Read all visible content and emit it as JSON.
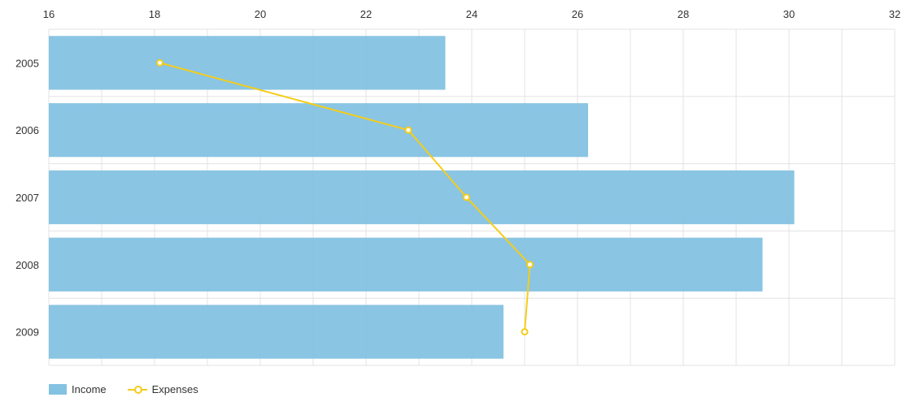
{
  "chart_data": {
    "type": "bar",
    "orientation": "horizontal",
    "categories": [
      "2005",
      "2006",
      "2007",
      "2008",
      "2009"
    ],
    "series": [
      {
        "name": "Income",
        "type": "bar",
        "values": [
          23.5,
          26.2,
          30.1,
          29.5,
          24.6
        ],
        "color": "#84c2e1"
      },
      {
        "name": "Expenses",
        "type": "line",
        "values": [
          18.1,
          22.8,
          23.9,
          25.1,
          25.0
        ],
        "color": "#f5cd19"
      }
    ],
    "xlim": [
      16,
      32
    ],
    "xticks": [
      "16",
      "18",
      "20",
      "22",
      "24",
      "26",
      "28",
      "30",
      "32"
    ],
    "x_axis_position": "top",
    "grid": true,
    "legend_placement": "bottom-left",
    "title": "",
    "xlabel": "",
    "ylabel": ""
  }
}
